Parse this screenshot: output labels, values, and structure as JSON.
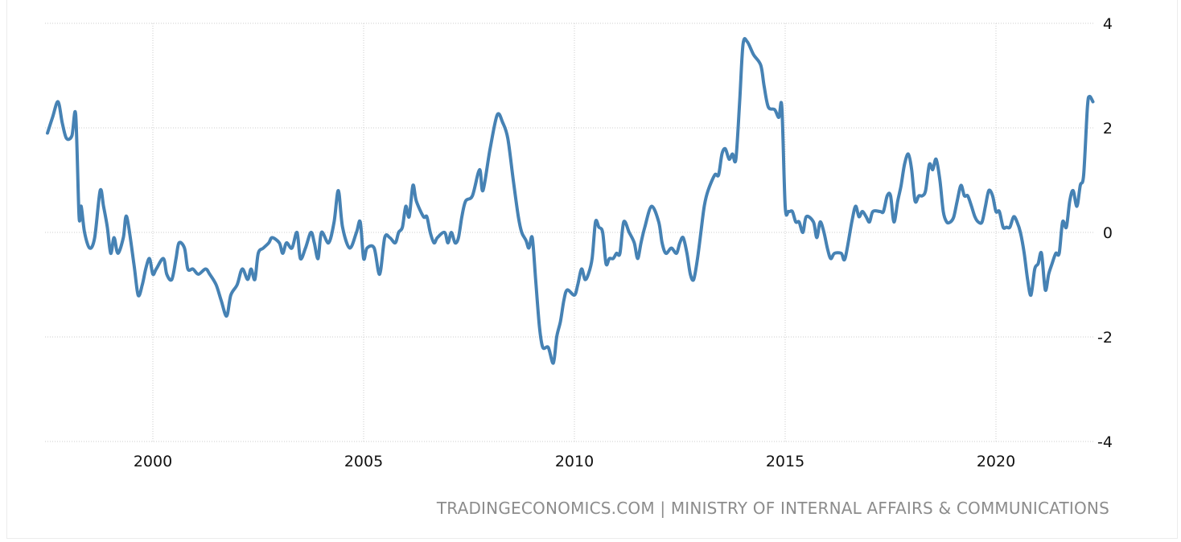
{
  "source_credit": "TRADINGECONOMICS.COM | MINISTRY OF INTERNAL AFFAIRS & COMMUNICATIONS",
  "colors": {
    "line": "#4682b4",
    "grid": "#cccccc",
    "text": "#111111",
    "credit": "#8c8c8c"
  },
  "chart_data": {
    "type": "line",
    "title": "",
    "xlabel": "",
    "ylabel": "",
    "xlim": [
      1997.5,
      2022.4
    ],
    "ylim": [
      -4,
      4
    ],
    "x_ticks": [
      2000,
      2005,
      2010,
      2015,
      2020
    ],
    "x_tick_labels": [
      "2000",
      "2005",
      "2010",
      "2015",
      "2020"
    ],
    "y_ticks": [
      4,
      2,
      0,
      -2,
      -4
    ],
    "y_tick_labels": [
      "4",
      "2",
      "0",
      "-2",
      "-4"
    ],
    "y_axis_side": "right",
    "grid": true,
    "legend": "none",
    "series": [
      {
        "points": [
          [
            1997.5,
            1.9
          ],
          [
            1997.62,
            2.2
          ],
          [
            1997.75,
            2.5
          ],
          [
            1997.85,
            2.1
          ],
          [
            1997.95,
            1.8
          ],
          [
            1998.08,
            1.85
          ],
          [
            1998.17,
            2.25
          ],
          [
            1998.25,
            0.3
          ],
          [
            1998.3,
            0.5
          ],
          [
            1998.38,
            0.0
          ],
          [
            1998.5,
            -0.3
          ],
          [
            1998.62,
            -0.1
          ],
          [
            1998.75,
            0.8
          ],
          [
            1998.83,
            0.5
          ],
          [
            1998.92,
            0.1
          ],
          [
            1999.0,
            -0.4
          ],
          [
            1999.08,
            -0.1
          ],
          [
            1999.17,
            -0.4
          ],
          [
            1999.3,
            -0.1
          ],
          [
            1999.38,
            0.3
          ],
          [
            1999.55,
            -0.6
          ],
          [
            1999.65,
            -1.2
          ],
          [
            1999.75,
            -1.0
          ],
          [
            1999.83,
            -0.7
          ],
          [
            1999.92,
            -0.5
          ],
          [
            2000.0,
            -0.8
          ],
          [
            2000.08,
            -0.7
          ],
          [
            2000.25,
            -0.5
          ],
          [
            2000.33,
            -0.8
          ],
          [
            2000.45,
            -0.9
          ],
          [
            2000.55,
            -0.5
          ],
          [
            2000.62,
            -0.2
          ],
          [
            2000.75,
            -0.3
          ],
          [
            2000.83,
            -0.7
          ],
          [
            2000.95,
            -0.7
          ],
          [
            2001.08,
            -0.8
          ],
          [
            2001.25,
            -0.7
          ],
          [
            2001.35,
            -0.8
          ],
          [
            2001.5,
            -1.0
          ],
          [
            2001.62,
            -1.3
          ],
          [
            2001.75,
            -1.6
          ],
          [
            2001.85,
            -1.2
          ],
          [
            2002.0,
            -1.0
          ],
          [
            2002.12,
            -0.7
          ],
          [
            2002.25,
            -0.9
          ],
          [
            2002.33,
            -0.7
          ],
          [
            2002.42,
            -0.9
          ],
          [
            2002.5,
            -0.4
          ],
          [
            2002.62,
            -0.3
          ],
          [
            2002.75,
            -0.2
          ],
          [
            2002.83,
            -0.1
          ],
          [
            2003.0,
            -0.2
          ],
          [
            2003.08,
            -0.4
          ],
          [
            2003.17,
            -0.2
          ],
          [
            2003.3,
            -0.3
          ],
          [
            2003.42,
            0.0
          ],
          [
            2003.5,
            -0.5
          ],
          [
            2003.62,
            -0.3
          ],
          [
            2003.75,
            0.0
          ],
          [
            2003.83,
            -0.2
          ],
          [
            2003.92,
            -0.5
          ],
          [
            2004.0,
            0.0
          ],
          [
            2004.17,
            -0.2
          ],
          [
            2004.3,
            0.2
          ],
          [
            2004.4,
            0.8
          ],
          [
            2004.5,
            0.1
          ],
          [
            2004.67,
            -0.3
          ],
          [
            2004.83,
            0.0
          ],
          [
            2004.92,
            0.2
          ],
          [
            2005.0,
            -0.5
          ],
          [
            2005.08,
            -0.3
          ],
          [
            2005.25,
            -0.3
          ],
          [
            2005.38,
            -0.8
          ],
          [
            2005.5,
            -0.1
          ],
          [
            2005.62,
            -0.1
          ],
          [
            2005.75,
            -0.2
          ],
          [
            2005.83,
            0.0
          ],
          [
            2005.92,
            0.1
          ],
          [
            2006.0,
            0.5
          ],
          [
            2006.08,
            0.3
          ],
          [
            2006.17,
            0.9
          ],
          [
            2006.25,
            0.6
          ],
          [
            2006.42,
            0.3
          ],
          [
            2006.5,
            0.3
          ],
          [
            2006.58,
            0.0
          ],
          [
            2006.67,
            -0.2
          ],
          [
            2006.75,
            -0.1
          ],
          [
            2006.92,
            0.0
          ],
          [
            2007.0,
            -0.2
          ],
          [
            2007.08,
            0.0
          ],
          [
            2007.17,
            -0.2
          ],
          [
            2007.25,
            -0.1
          ],
          [
            2007.33,
            0.3
          ],
          [
            2007.42,
            0.6
          ],
          [
            2007.58,
            0.7
          ],
          [
            2007.75,
            1.2
          ],
          [
            2007.83,
            0.8
          ],
          [
            2008.0,
            1.6
          ],
          [
            2008.17,
            2.25
          ],
          [
            2008.3,
            2.1
          ],
          [
            2008.42,
            1.8
          ],
          [
            2008.55,
            1.0
          ],
          [
            2008.67,
            0.3
          ],
          [
            2008.75,
            0.0
          ],
          [
            2008.85,
            -0.15
          ],
          [
            2008.92,
            -0.3
          ],
          [
            2009.0,
            -0.1
          ],
          [
            2009.08,
            -0.9
          ],
          [
            2009.17,
            -1.8
          ],
          [
            2009.25,
            -2.2
          ],
          [
            2009.38,
            -2.2
          ],
          [
            2009.5,
            -2.5
          ],
          [
            2009.58,
            -2.0
          ],
          [
            2009.67,
            -1.7
          ],
          [
            2009.75,
            -1.3
          ],
          [
            2009.83,
            -1.1
          ],
          [
            2010.0,
            -1.2
          ],
          [
            2010.08,
            -1.0
          ],
          [
            2010.17,
            -0.7
          ],
          [
            2010.25,
            -0.9
          ],
          [
            2010.33,
            -0.8
          ],
          [
            2010.42,
            -0.5
          ],
          [
            2010.5,
            0.2
          ],
          [
            2010.58,
            0.1
          ],
          [
            2010.67,
            0.0
          ],
          [
            2010.75,
            -0.6
          ],
          [
            2010.83,
            -0.5
          ],
          [
            2010.92,
            -0.5
          ],
          [
            2011.0,
            -0.4
          ],
          [
            2011.08,
            -0.4
          ],
          [
            2011.17,
            0.2
          ],
          [
            2011.3,
            0.0
          ],
          [
            2011.42,
            -0.2
          ],
          [
            2011.5,
            -0.5
          ],
          [
            2011.58,
            -0.2
          ],
          [
            2011.67,
            0.1
          ],
          [
            2011.83,
            0.5
          ],
          [
            2012.0,
            0.2
          ],
          [
            2012.08,
            -0.2
          ],
          [
            2012.17,
            -0.4
          ],
          [
            2012.3,
            -0.3
          ],
          [
            2012.42,
            -0.4
          ],
          [
            2012.5,
            -0.2
          ],
          [
            2012.58,
            -0.1
          ],
          [
            2012.67,
            -0.4
          ],
          [
            2012.75,
            -0.8
          ],
          [
            2012.83,
            -0.9
          ],
          [
            2012.92,
            -0.5
          ],
          [
            2013.0,
            0.0
          ],
          [
            2013.08,
            0.5
          ],
          [
            2013.17,
            0.8
          ],
          [
            2013.33,
            1.1
          ],
          [
            2013.42,
            1.1
          ],
          [
            2013.5,
            1.5
          ],
          [
            2013.58,
            1.6
          ],
          [
            2013.67,
            1.4
          ],
          [
            2013.75,
            1.5
          ],
          [
            2013.83,
            1.4
          ],
          [
            2013.92,
            2.5
          ],
          [
            2014.0,
            3.6
          ],
          [
            2014.1,
            3.65
          ],
          [
            2014.25,
            3.4
          ],
          [
            2014.42,
            3.2
          ],
          [
            2014.5,
            2.8
          ],
          [
            2014.6,
            2.4
          ],
          [
            2014.75,
            2.35
          ],
          [
            2014.85,
            2.2
          ],
          [
            2014.92,
            2.4
          ],
          [
            2015.0,
            0.5
          ],
          [
            2015.08,
            0.4
          ],
          [
            2015.17,
            0.4
          ],
          [
            2015.25,
            0.2
          ],
          [
            2015.33,
            0.2
          ],
          [
            2015.42,
            0.0
          ],
          [
            2015.5,
            0.3
          ],
          [
            2015.67,
            0.2
          ],
          [
            2015.75,
            -0.1
          ],
          [
            2015.83,
            0.2
          ],
          [
            2015.92,
            0.0
          ],
          [
            2016.0,
            -0.3
          ],
          [
            2016.08,
            -0.5
          ],
          [
            2016.17,
            -0.4
          ],
          [
            2016.33,
            -0.4
          ],
          [
            2016.42,
            -0.5
          ],
          [
            2016.58,
            0.2
          ],
          [
            2016.67,
            0.5
          ],
          [
            2016.75,
            0.3
          ],
          [
            2016.83,
            0.4
          ],
          [
            2016.92,
            0.3
          ],
          [
            2017.0,
            0.2
          ],
          [
            2017.08,
            0.4
          ],
          [
            2017.25,
            0.4
          ],
          [
            2017.33,
            0.4
          ],
          [
            2017.42,
            0.7
          ],
          [
            2017.5,
            0.7
          ],
          [
            2017.58,
            0.2
          ],
          [
            2017.67,
            0.6
          ],
          [
            2017.75,
            0.9
          ],
          [
            2017.83,
            1.3
          ],
          [
            2017.92,
            1.5
          ],
          [
            2018.0,
            1.2
          ],
          [
            2018.08,
            0.6
          ],
          [
            2018.17,
            0.7
          ],
          [
            2018.25,
            0.7
          ],
          [
            2018.33,
            0.8
          ],
          [
            2018.42,
            1.3
          ],
          [
            2018.5,
            1.2
          ],
          [
            2018.58,
            1.4
          ],
          [
            2018.67,
            1.0
          ],
          [
            2018.75,
            0.4
          ],
          [
            2018.83,
            0.2
          ],
          [
            2018.92,
            0.2
          ],
          [
            2019.0,
            0.3
          ],
          [
            2019.08,
            0.6
          ],
          [
            2019.17,
            0.9
          ],
          [
            2019.25,
            0.7
          ],
          [
            2019.33,
            0.7
          ],
          [
            2019.42,
            0.5
          ],
          [
            2019.5,
            0.3
          ],
          [
            2019.58,
            0.2
          ],
          [
            2019.67,
            0.2
          ],
          [
            2019.75,
            0.5
          ],
          [
            2019.83,
            0.8
          ],
          [
            2019.92,
            0.7
          ],
          [
            2020.0,
            0.4
          ],
          [
            2020.08,
            0.4
          ],
          [
            2020.17,
            0.1
          ],
          [
            2020.25,
            0.1
          ],
          [
            2020.33,
            0.1
          ],
          [
            2020.42,
            0.3
          ],
          [
            2020.5,
            0.2
          ],
          [
            2020.58,
            0.0
          ],
          [
            2020.67,
            -0.4
          ],
          [
            2020.75,
            -0.9
          ],
          [
            2020.83,
            -1.2
          ],
          [
            2020.92,
            -0.7
          ],
          [
            2021.0,
            -0.6
          ],
          [
            2021.08,
            -0.4
          ],
          [
            2021.17,
            -1.1
          ],
          [
            2021.25,
            -0.8
          ],
          [
            2021.33,
            -0.6
          ],
          [
            2021.42,
            -0.4
          ],
          [
            2021.5,
            -0.4
          ],
          [
            2021.58,
            0.2
          ],
          [
            2021.67,
            0.1
          ],
          [
            2021.75,
            0.6
          ],
          [
            2021.83,
            0.8
          ],
          [
            2021.92,
            0.5
          ],
          [
            2022.0,
            0.9
          ],
          [
            2022.08,
            1.1
          ],
          [
            2022.17,
            2.4
          ],
          [
            2022.22,
            2.6
          ],
          [
            2022.3,
            2.5
          ]
        ]
      }
    ]
  }
}
